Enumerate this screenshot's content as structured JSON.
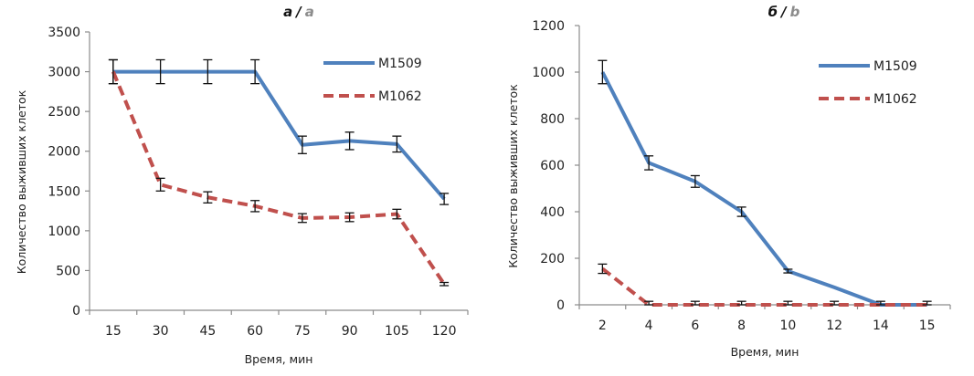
{
  "colors": {
    "M1509": "#4f81bd",
    "M1062": "#c0504d"
  },
  "chart_data": [
    {
      "type": "line",
      "panel": "a",
      "title": "а / a",
      "title_main": "а",
      "title_sep": "/",
      "title_alt": "a",
      "xlabel": "Время, мин",
      "ylabel": "Количество выживших клеток",
      "categories": [
        "15",
        "30",
        "45",
        "60",
        "75",
        "90",
        "105",
        "120"
      ],
      "ylim": [
        0,
        3500
      ],
      "yticks": [
        0,
        500,
        1000,
        1500,
        2000,
        2500,
        3000,
        3500
      ],
      "legend_position": "top-right",
      "grid": false,
      "series": [
        {
          "name": "M1509",
          "style": "solid",
          "values": [
            3000,
            3000,
            3000,
            3000,
            2080,
            2130,
            2090,
            1400
          ],
          "errors": [
            150,
            150,
            150,
            150,
            110,
            110,
            100,
            70
          ]
        },
        {
          "name": "M1062",
          "style": "dashed",
          "values": [
            3000,
            1580,
            1420,
            1310,
            1160,
            1170,
            1210,
            330
          ],
          "errors": [
            150,
            80,
            70,
            70,
            55,
            55,
            60,
            20
          ]
        }
      ]
    },
    {
      "type": "line",
      "panel": "b",
      "title": "б / b",
      "title_main": "б",
      "title_sep": "/",
      "title_alt": "b",
      "xlabel": "Время, мин",
      "ylabel": "Количество выживших клеток",
      "categories": [
        "2",
        "4",
        "6",
        "8",
        "10",
        "12",
        "14",
        "15"
      ],
      "ylim": [
        0,
        1200
      ],
      "yticks": [
        0,
        200,
        400,
        600,
        800,
        1000,
        1200
      ],
      "legend_position": "top-right",
      "grid": false,
      "series": [
        {
          "name": "M1509",
          "style": "solid",
          "values": [
            1000,
            610,
            530,
            400,
            145,
            75,
            0,
            0
          ],
          "errors": [
            50,
            30,
            25,
            20,
            8,
            0,
            0,
            0
          ]
        },
        {
          "name": "M1062",
          "style": "dashed",
          "values": [
            155,
            0,
            0,
            0,
            0,
            0,
            0,
            0
          ],
          "errors": [
            20,
            15,
            15,
            15,
            15,
            15,
            15,
            15
          ]
        }
      ]
    }
  ]
}
